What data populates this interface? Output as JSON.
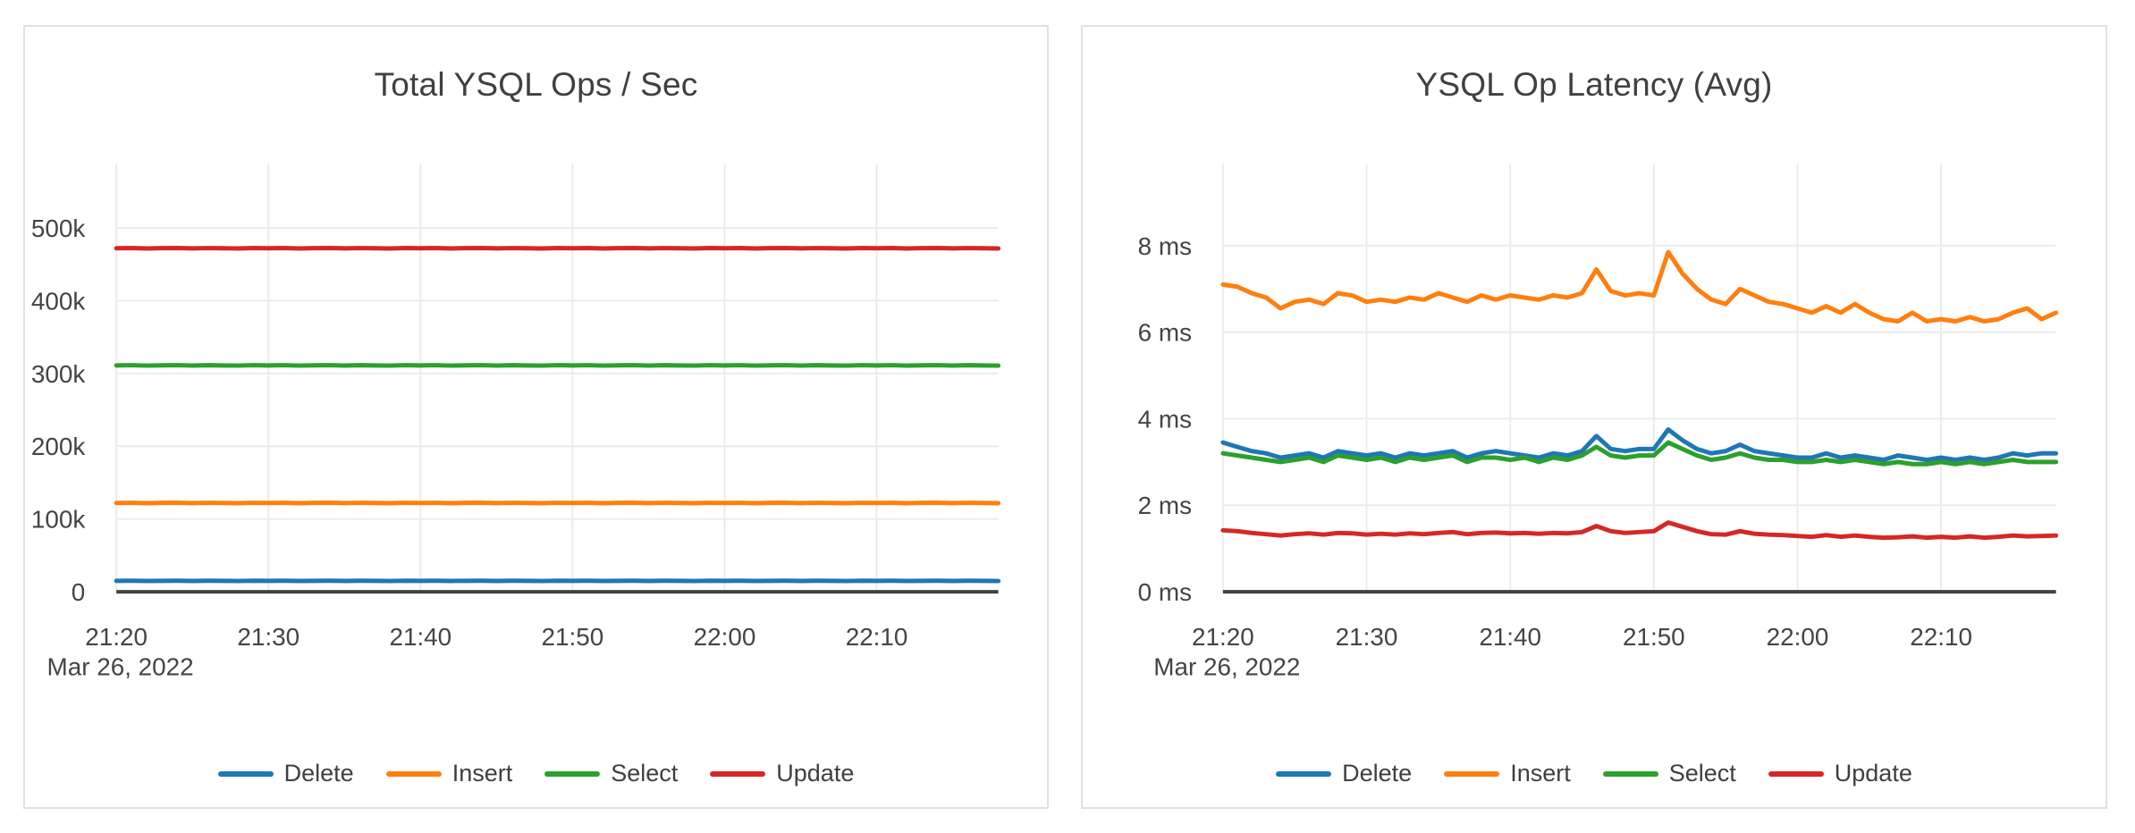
{
  "colors": {
    "delete": "#1f77b4",
    "insert": "#ff7f0e",
    "select": "#2ca02c",
    "update": "#d62728",
    "grid": "#ececec",
    "zero_axis": "#424242",
    "text": "#444444",
    "card_border": "#e1e1e1",
    "background": "#ffffff"
  },
  "chart_data": [
    {
      "type": "line",
      "title": "Total YSQL Ops / Sec",
      "date_label": "Mar 26, 2022",
      "x_ticks": [
        {
          "minute": 0,
          "label": "21:20"
        },
        {
          "minute": 10,
          "label": "21:30"
        },
        {
          "minute": 20,
          "label": "21:40"
        },
        {
          "minute": 30,
          "label": "21:50"
        },
        {
          "minute": 40,
          "label": "22:00"
        },
        {
          "minute": 50,
          "label": "22:10"
        }
      ],
      "x_domain_minutes": [
        0,
        58
      ],
      "y_domain": [
        0,
        588000
      ],
      "grid": true,
      "legend_position": "bottom",
      "y_ticks": [
        {
          "value": 0,
          "label": "0"
        },
        {
          "value": 100000,
          "label": "100k"
        },
        {
          "value": 200000,
          "label": "200k"
        },
        {
          "value": 300000,
          "label": "300k"
        },
        {
          "value": 400000,
          "label": "400k"
        },
        {
          "value": 500000,
          "label": "500k"
        }
      ],
      "series": [
        {
          "name": "Delete",
          "color": "#1f77b4",
          "approx_level": "15k ops/sec (flat)",
          "values": [
            15000,
            15150,
            14900,
            15050,
            15200,
            14950,
            15100,
            15000,
            14850,
            15150,
            15000,
            15150,
            14900,
            15050,
            15200,
            14950,
            15100,
            15000,
            14850,
            15150,
            15000,
            15150,
            14900,
            15050,
            15200,
            14950,
            15100,
            15000,
            14850,
            15150,
            15000,
            15150,
            14900,
            15050,
            15200,
            14950,
            15100,
            15000,
            14850,
            15150,
            15000,
            15150,
            14900,
            15050,
            15200,
            14950,
            15100,
            15000,
            14850,
            15150,
            15000,
            15150,
            14900,
            15050,
            15200,
            14950,
            15100,
            15000,
            14850
          ]
        },
        {
          "name": "Insert",
          "color": "#ff7f0e",
          "approx_level": "122k ops/sec (flat)",
          "values": [
            122000,
            122300,
            121800,
            122100,
            122400,
            121900,
            122200,
            122000,
            121700,
            122300,
            122000,
            122300,
            121800,
            122100,
            122400,
            121900,
            122200,
            122000,
            121700,
            122300,
            122000,
            122300,
            121800,
            122100,
            122400,
            121900,
            122200,
            122000,
            121700,
            122300,
            122000,
            122300,
            121800,
            122100,
            122400,
            121900,
            122200,
            122000,
            121700,
            122300,
            122000,
            122300,
            121800,
            122100,
            122400,
            121900,
            122200,
            122000,
            121700,
            122300,
            122000,
            122300,
            121800,
            122100,
            122400,
            121900,
            122200,
            122000,
            121700
          ]
        },
        {
          "name": "Select",
          "color": "#2ca02c",
          "approx_level": "311k ops/sec (flat)",
          "values": [
            311000,
            311300,
            310800,
            311100,
            311400,
            310900,
            311200,
            311000,
            310700,
            311300,
            311000,
            311300,
            310800,
            311100,
            311400,
            310900,
            311200,
            311000,
            310700,
            311300,
            311000,
            311300,
            310800,
            311100,
            311400,
            310900,
            311200,
            311000,
            310700,
            311300,
            311000,
            311300,
            310800,
            311100,
            311400,
            310900,
            311200,
            311000,
            310700,
            311300,
            311000,
            311300,
            310800,
            311100,
            311400,
            310900,
            311200,
            311000,
            310700,
            311300,
            311000,
            311300,
            310800,
            311100,
            311400,
            310900,
            311200,
            311000,
            310700
          ]
        },
        {
          "name": "Update",
          "color": "#d62728",
          "approx_level": "472k ops/sec (flat)",
          "values": [
            472000,
            472300,
            471800,
            472100,
            472400,
            471900,
            472200,
            472000,
            471700,
            472300,
            472000,
            472300,
            471800,
            472100,
            472400,
            471900,
            472200,
            472000,
            471700,
            472300,
            472000,
            472300,
            471800,
            472100,
            472400,
            471900,
            472200,
            472000,
            471700,
            472300,
            472000,
            472300,
            471800,
            472100,
            472400,
            471900,
            472200,
            472000,
            471700,
            472300,
            472000,
            472300,
            471800,
            472100,
            472400,
            471900,
            472200,
            472000,
            471700,
            472300,
            472000,
            472300,
            471800,
            472100,
            472400,
            471900,
            472200,
            472000,
            471700
          ]
        }
      ]
    },
    {
      "type": "line",
      "title": "YSQL Op Latency (Avg)",
      "date_label": "Mar 26, 2022",
      "x_ticks": [
        {
          "minute": 0,
          "label": "21:20"
        },
        {
          "minute": 10,
          "label": "21:30"
        },
        {
          "minute": 20,
          "label": "21:40"
        },
        {
          "minute": 30,
          "label": "21:50"
        },
        {
          "minute": 40,
          "label": "22:00"
        },
        {
          "minute": 50,
          "label": "22:10"
        }
      ],
      "x_domain_minutes": [
        0,
        58
      ],
      "y_domain": [
        0,
        9.89
      ],
      "grid": true,
      "legend_position": "bottom",
      "y_ticks": [
        {
          "value": 0,
          "label": "0 ms"
        },
        {
          "value": 2,
          "label": "2 ms"
        },
        {
          "value": 4,
          "label": "4 ms"
        },
        {
          "value": 6,
          "label": "6 ms"
        },
        {
          "value": 8,
          "label": "8 ms"
        }
      ],
      "series": [
        {
          "name": "Delete",
          "color": "#1f77b4",
          "unit": "ms",
          "values": [
            3.45,
            3.35,
            3.25,
            3.2,
            3.1,
            3.15,
            3.2,
            3.1,
            3.25,
            3.2,
            3.15,
            3.2,
            3.1,
            3.2,
            3.15,
            3.2,
            3.25,
            3.1,
            3.2,
            3.25,
            3.2,
            3.15,
            3.1,
            3.2,
            3.15,
            3.25,
            3.6,
            3.3,
            3.25,
            3.3,
            3.3,
            3.75,
            3.5,
            3.3,
            3.2,
            3.25,
            3.4,
            3.25,
            3.2,
            3.15,
            3.1,
            3.1,
            3.2,
            3.1,
            3.15,
            3.1,
            3.05,
            3.15,
            3.1,
            3.05,
            3.1,
            3.05,
            3.1,
            3.05,
            3.1,
            3.2,
            3.15,
            3.2,
            3.2
          ]
        },
        {
          "name": "Insert",
          "color": "#ff7f0e",
          "unit": "ms",
          "values": [
            7.1,
            7.05,
            6.9,
            6.8,
            6.55,
            6.7,
            6.75,
            6.65,
            6.9,
            6.85,
            6.7,
            6.75,
            6.7,
            6.8,
            6.75,
            6.9,
            6.8,
            6.7,
            6.85,
            6.75,
            6.85,
            6.8,
            6.75,
            6.85,
            6.8,
            6.9,
            7.45,
            6.95,
            6.85,
            6.9,
            6.85,
            7.85,
            7.35,
            7.0,
            6.75,
            6.65,
            7.0,
            6.85,
            6.7,
            6.65,
            6.55,
            6.45,
            6.6,
            6.45,
            6.65,
            6.45,
            6.3,
            6.25,
            6.45,
            6.25,
            6.3,
            6.25,
            6.35,
            6.25,
            6.3,
            6.45,
            6.55,
            6.3,
            6.45
          ]
        },
        {
          "name": "Select",
          "color": "#2ca02c",
          "unit": "ms",
          "values": [
            3.2,
            3.15,
            3.1,
            3.05,
            3.0,
            3.05,
            3.1,
            3.0,
            3.15,
            3.1,
            3.05,
            3.1,
            3.0,
            3.1,
            3.05,
            3.1,
            3.15,
            3.0,
            3.1,
            3.1,
            3.05,
            3.1,
            3.0,
            3.1,
            3.05,
            3.15,
            3.35,
            3.15,
            3.1,
            3.15,
            3.15,
            3.45,
            3.3,
            3.15,
            3.05,
            3.1,
            3.2,
            3.1,
            3.05,
            3.05,
            3.0,
            3.0,
            3.05,
            3.0,
            3.05,
            3.0,
            2.95,
            3.0,
            2.95,
            2.95,
            3.0,
            2.95,
            3.0,
            2.95,
            3.0,
            3.05,
            3.0,
            3.0,
            3.0
          ]
        },
        {
          "name": "Update",
          "color": "#d62728",
          "unit": "ms",
          "values": [
            1.42,
            1.4,
            1.36,
            1.33,
            1.3,
            1.33,
            1.35,
            1.32,
            1.36,
            1.35,
            1.32,
            1.34,
            1.32,
            1.35,
            1.33,
            1.36,
            1.38,
            1.33,
            1.36,
            1.37,
            1.35,
            1.36,
            1.34,
            1.36,
            1.35,
            1.38,
            1.52,
            1.4,
            1.36,
            1.38,
            1.4,
            1.6,
            1.5,
            1.4,
            1.33,
            1.32,
            1.4,
            1.34,
            1.32,
            1.31,
            1.29,
            1.27,
            1.31,
            1.27,
            1.3,
            1.27,
            1.25,
            1.26,
            1.28,
            1.25,
            1.27,
            1.25,
            1.28,
            1.25,
            1.27,
            1.3,
            1.28,
            1.29,
            1.3
          ]
        }
      ]
    }
  ]
}
